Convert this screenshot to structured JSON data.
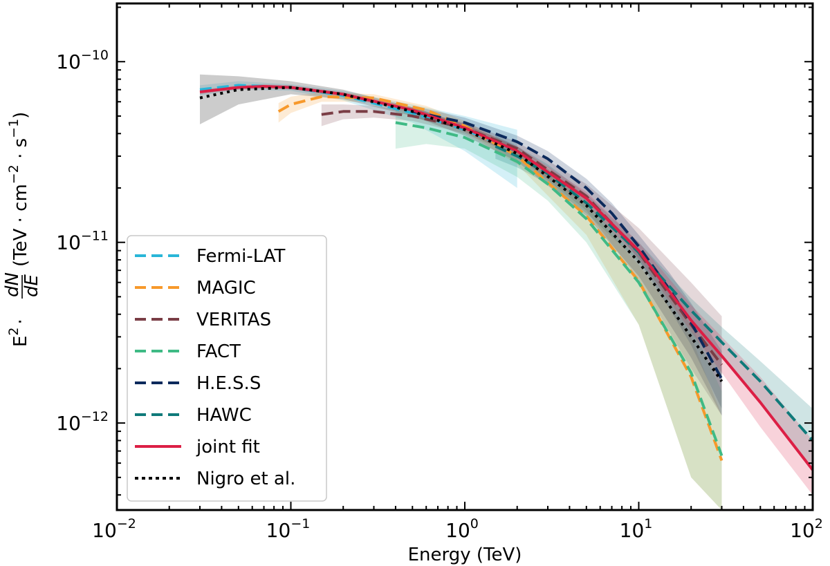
{
  "chart_data": {
    "type": "line",
    "title": "",
    "xlabel": "Energy (TeV)",
    "ylabel_prefix": "E",
    "ylabel_sq": "2",
    "ylabel_dot": "·",
    "ylabel_num": "dN",
    "ylabel_den": "dE",
    "ylabel_units": {
      "open": "(TeV · cm",
      "exp1": "−2",
      "mid": " · s",
      "exp2": "−1",
      "close": ")"
    },
    "xscale": "log",
    "yscale": "log",
    "xlim": [
      0.01,
      100
    ],
    "ylim": [
      3.3e-13,
      2.1e-10
    ],
    "x_ticks": [
      {
        "base": "10",
        "exp": "−2",
        "value": 0.01
      },
      {
        "base": "10",
        "exp": "−1",
        "value": 0.1
      },
      {
        "base": "10",
        "exp": "0",
        "value": 1
      },
      {
        "base": "10",
        "exp": "1",
        "value": 10
      },
      {
        "base": "10",
        "exp": "2",
        "value": 100
      }
    ],
    "y_ticks": [
      {
        "base": "10",
        "exp": "−12",
        "value": 1e-12
      },
      {
        "base": "10",
        "exp": "−11",
        "value": 1e-11
      },
      {
        "base": "10",
        "exp": "−10",
        "value": 1e-10
      }
    ],
    "grid": false,
    "legend_position": "lower-left",
    "series": [
      {
        "name": "Fermi-LAT",
        "color": "#29b6d8",
        "style": "dashed",
        "x": [
          0.03,
          0.05,
          0.1,
          0.2,
          0.5,
          1.0,
          2.0
        ],
        "y": [
          7e-11,
          7.4e-11,
          7.2e-11,
          6.5e-11,
          5.2e-11,
          4.2e-11,
          3.2e-11
        ],
        "band_lower": [
          6.5e-11,
          7e-11,
          6.9e-11,
          6.1e-11,
          4.6e-11,
          3.2e-11,
          2e-11
        ],
        "band_upper": [
          7.4e-11,
          7.8e-11,
          7.5e-11,
          6.9e-11,
          5.8e-11,
          5e-11,
          4.2e-11
        ]
      },
      {
        "name": "MAGIC",
        "color": "#f7992b",
        "style": "dashed",
        "x": [
          0.085,
          0.1,
          0.15,
          0.3,
          0.6,
          1.0,
          2.0,
          5.0,
          10.0,
          20.0,
          30.0
        ],
        "y": [
          5.3e-11,
          5.8e-11,
          6.4e-11,
          6.3e-11,
          5.4e-11,
          4.4e-11,
          3e-11,
          1.4e-11,
          6.1e-12,
          1.8e-12,
          6.2e-13
        ],
        "band_lower": [
          4.6e-11,
          5.2e-11,
          6e-11,
          6e-11,
          5.1e-11,
          4.1e-11,
          2.7e-11,
          1.1e-11,
          3.5e-12,
          5e-13,
          3.3e-13
        ],
        "band_upper": [
          5.9e-11,
          6.4e-11,
          6.8e-11,
          6.6e-11,
          5.7e-11,
          4.7e-11,
          3.3e-11,
          1.6e-11,
          7.5e-12,
          3e-12,
          1.1e-12
        ]
      },
      {
        "name": "VERITAS",
        "color": "#7a3d45",
        "style": "dashed",
        "x": [
          0.15,
          0.2,
          0.3,
          0.5,
          1.0,
          2.0,
          5.0,
          10.0,
          20.0,
          30.0
        ],
        "y": [
          5.1e-11,
          5.3e-11,
          5.3e-11,
          5e-11,
          4.3e-11,
          3.3e-11,
          1.8e-11,
          8.8e-12,
          3.5e-12,
          2.1e-12
        ],
        "band_lower": [
          4.4e-11,
          4.8e-11,
          4.9e-11,
          4.7e-11,
          4e-11,
          3e-11,
          1.5e-11,
          6.2e-12,
          2e-12,
          1.1e-12
        ],
        "band_upper": [
          5.8e-11,
          5.8e-11,
          5.7e-11,
          5.3e-11,
          4.6e-11,
          3.6e-11,
          2.1e-11,
          1.2e-11,
          6e-12,
          3.9e-12
        ]
      },
      {
        "name": "FACT",
        "color": "#3fba85",
        "style": "dashed",
        "x": [
          0.4,
          0.6,
          1.0,
          2.0,
          3.0,
          5.0,
          10.0,
          20.0,
          30.0
        ],
        "y": [
          4.6e-11,
          4.3e-11,
          3.8e-11,
          2.8e-11,
          2.1e-11,
          1.35e-11,
          6e-12,
          1.9e-12,
          6.6e-13
        ],
        "band_lower": [
          3.3e-11,
          3.5e-11,
          3.3e-11,
          2.3e-11,
          1.7e-11,
          1e-11,
          3.5e-12,
          5e-13,
          3.3e-13
        ],
        "band_upper": [
          5.9e-11,
          5.3e-11,
          4.3e-11,
          3.2e-11,
          2.5e-11,
          1.65e-11,
          8e-12,
          3.5e-12,
          1.5e-12
        ]
      },
      {
        "name": "H.E.S.S",
        "color": "#0c2a5c",
        "style": "dashed",
        "x": [
          0.5,
          1.0,
          2.0,
          3.0,
          5.0,
          7.0,
          10.0,
          15.0,
          20.0,
          30.0
        ],
        "y": [
          5.3e-11,
          4.6e-11,
          3.6e-11,
          2.9e-11,
          2e-11,
          1.45e-11,
          9.5e-12,
          5.5e-12,
          3.6e-12,
          1.75e-12
        ],
        "band_lower": [
          4.9e-11,
          4.3e-11,
          3.3e-11,
          2.6e-11,
          1.75e-11,
          1.25e-11,
          8e-12,
          4.3e-12,
          2.7e-12,
          1.2e-12
        ],
        "band_upper": [
          5.7e-11,
          4.9e-11,
          3.9e-11,
          3.2e-11,
          2.25e-11,
          1.65e-11,
          1.1e-11,
          6.8e-12,
          4.6e-12,
          2.5e-12
        ]
      },
      {
        "name": "HAWC",
        "color": "#0f7a7a",
        "style": "dashed",
        "x": [
          1.5,
          2.0,
          3.0,
          5.0,
          10.0,
          20.0,
          30.0,
          50.0,
          100.0
        ],
        "y": [
          3.4e-11,
          3e-11,
          2.4e-11,
          1.65e-11,
          8.8e-12,
          4.2e-12,
          2.8e-12,
          1.7e-12,
          8e-13
        ],
        "band_lower": [
          2.9e-11,
          2.6e-11,
          2.1e-11,
          1.45e-11,
          7.8e-12,
          3.6e-12,
          2.3e-12,
          1.3e-12,
          5.5e-13
        ],
        "band_upper": [
          3.9e-11,
          3.4e-11,
          2.7e-11,
          1.85e-11,
          1e-11,
          4.9e-12,
          3.4e-12,
          2.2e-12,
          1.2e-12
        ]
      },
      {
        "name": "joint fit",
        "color": "#dc1f45",
        "style": "solid",
        "x": [
          0.03,
          0.05,
          0.07,
          0.1,
          0.2,
          0.5,
          1.0,
          2.0,
          5.0,
          10.0,
          20.0,
          30.0,
          50.0,
          100.0
        ],
        "y": [
          6.8e-11,
          7.2e-11,
          7.3e-11,
          7.2e-11,
          6.6e-11,
          5.4e-11,
          4.3e-11,
          3.2e-11,
          1.75e-11,
          9e-12,
          3.7e-12,
          2.35e-12,
          1.3e-12,
          5.5e-13
        ],
        "band_lower": [
          6.6e-11,
          7e-11,
          7.1e-11,
          7e-11,
          6.4e-11,
          5.2e-11,
          4.1e-11,
          3e-11,
          1.6e-11,
          8.2e-12,
          3.2e-12,
          1.9e-12,
          9.5e-13,
          4e-13
        ],
        "band_upper": [
          7e-11,
          7.4e-11,
          7.5e-11,
          7.4e-11,
          6.8e-11,
          5.6e-11,
          4.5e-11,
          3.4e-11,
          1.9e-11,
          1e-11,
          4.5e-12,
          3e-12,
          1.8e-12,
          8e-13
        ]
      },
      {
        "name": "Nigro et al.",
        "color": "#000000",
        "style": "dotted",
        "x": [
          0.03,
          0.05,
          0.1,
          0.2,
          0.5,
          1.0,
          2.0,
          5.0,
          10.0,
          20.0,
          30.0
        ],
        "y": [
          6.3e-11,
          7e-11,
          7.2e-11,
          6.6e-11,
          5.3e-11,
          4.2e-11,
          3.1e-11,
          1.6e-11,
          7.8e-12,
          3e-12,
          1.7e-12
        ],
        "band_lower": [
          4.5e-11,
          5.8e-11,
          6.6e-11,
          6.2e-11,
          5e-11,
          3.9e-11,
          2.8e-11,
          1.4e-11,
          6.5e-12,
          2.3e-12,
          1.1e-12
        ],
        "band_upper": [
          8.5e-11,
          8.3e-11,
          7.8e-11,
          7e-11,
          5.6e-11,
          4.5e-11,
          3.4e-11,
          1.8e-11,
          9e-12,
          3.8e-12,
          2.3e-12
        ]
      }
    ]
  }
}
